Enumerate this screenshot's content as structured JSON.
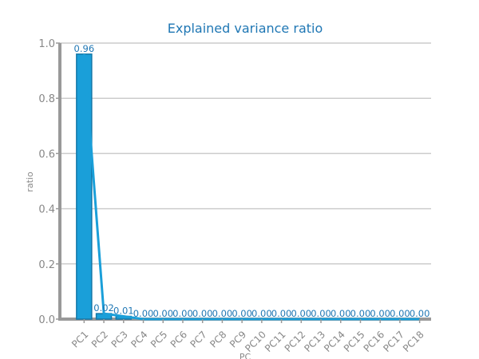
{
  "title": "Explained variance ratio",
  "colors": {
    "title": "#1f77b4",
    "bar_fill": "#1a9fd9",
    "bar_stroke": "#1478a8",
    "line": "#1a9fd9",
    "label": "#1f77b4",
    "axis": "#999999",
    "grid": "#cccccc",
    "tick_text": "#888888"
  },
  "chart_data": {
    "type": "bar",
    "title": "Explained variance ratio",
    "xlabel": "PC",
    "ylabel": "ratio",
    "categories": [
      "PC1",
      "PC2",
      "PC3",
      "PC4",
      "PC5",
      "PC6",
      "PC7",
      "PC8",
      "PC9",
      "PC10",
      "PC11",
      "PC12",
      "PC13",
      "PC14",
      "PC15",
      "PC16",
      "PC17",
      "PC18"
    ],
    "values": [
      0.96,
      0.02,
      0.01,
      0.0,
      0.0,
      0.0,
      0.0,
      0.0,
      0.0,
      0.0,
      0.0,
      0.0,
      0.0,
      0.0,
      0.0,
      0.0,
      0.0,
      0.0
    ],
    "data_labels": [
      "0.96",
      "0.02",
      "0.01",
      "0.00",
      "0.00",
      "0.00",
      "0.00",
      "0.00",
      "0.00",
      "0.00",
      "0.00",
      "0.00",
      "0.00",
      "0.00",
      "0.00",
      "0.00",
      "0.00",
      "0.00"
    ],
    "overlay": "line",
    "ylim": [
      0,
      1.0
    ],
    "yticks": [
      "0.0",
      "0.2",
      "0.4",
      "0.6",
      "0.8",
      "1.0"
    ],
    "grid": true,
    "legend": "none"
  }
}
